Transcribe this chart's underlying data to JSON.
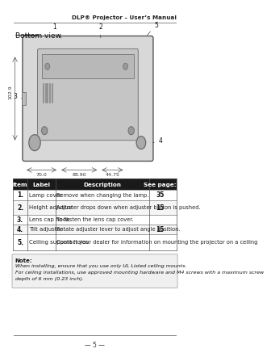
{
  "header_title": "DLP® Projector – User’s Manual",
  "section_title": "Bottom view",
  "page_number": "5",
  "table_headers": [
    "Item",
    "Label",
    "Description",
    "See page:"
  ],
  "table_rows": [
    [
      "1.",
      "Lamp cover",
      "Remove when changing the lamp.",
      "35"
    ],
    [
      "2.",
      "Height adjustor",
      "Adjuster drops down when adjuster button is pushed.",
      "15"
    ],
    [
      "3.",
      "Lens cap hook",
      "To fasten the lens cap cover.",
      ""
    ],
    [
      "4.",
      "Tilt adjustor",
      "Rotate adjuster lever to adjust angle position.",
      "15"
    ],
    [
      "5.",
      "Ceiling support holes",
      "Contact your dealer for information on mounting the projector on a ceiling",
      ""
    ]
  ],
  "note_title": "Note:",
  "note_lines": [
    "When installing, ensure that you use only UL Listed ceiling mounts.",
    "For ceiling installations, use approved mounting hardware and M4 screws with a maximum screw",
    "depth of 6 mm (0.23 inch)."
  ],
  "bg_color": "#ffffff",
  "header_line_color": "#888888",
  "table_header_bg": "#1a1a1a",
  "table_header_text": "#ffffff",
  "table_border_color": "#555555",
  "note_bg": "#f0f0f0",
  "note_border": "#aaaaaa"
}
